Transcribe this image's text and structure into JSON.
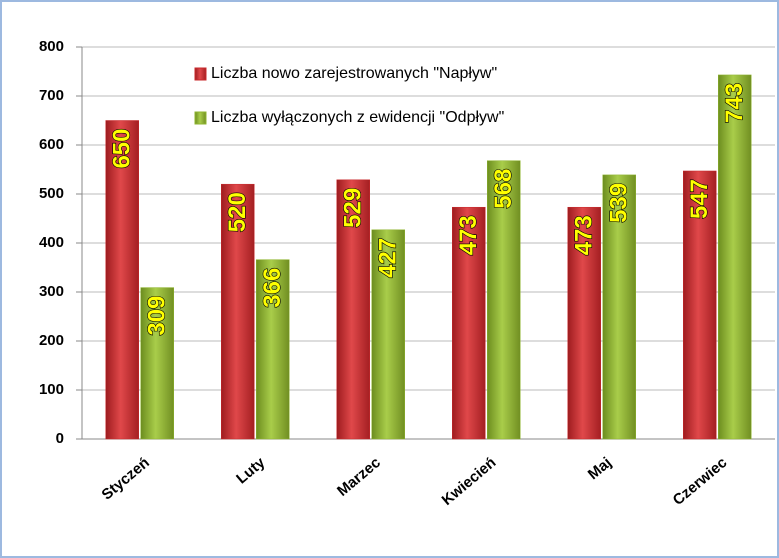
{
  "chart_data": {
    "type": "bar",
    "categories": [
      "Styczeń",
      "Luty",
      "Marzec",
      "Kwiecień",
      "Maj",
      "Czerwiec"
    ],
    "series": [
      {
        "name": "Liczba nowo zarejestrowanych \"Napływ\"",
        "color": "#c8282b",
        "values": [
          650,
          520,
          529,
          473,
          473,
          547
        ]
      },
      {
        "name": "Liczba wyłączonych z ewidencji \"Odpływ\"",
        "color": "#8fb52f",
        "values": [
          309,
          366,
          427,
          568,
          539,
          743
        ]
      }
    ],
    "ylim": [
      0,
      800
    ],
    "yticks": [
      0,
      100,
      200,
      300,
      400,
      500,
      600,
      700,
      800
    ],
    "grid": true,
    "legend": "top"
  }
}
